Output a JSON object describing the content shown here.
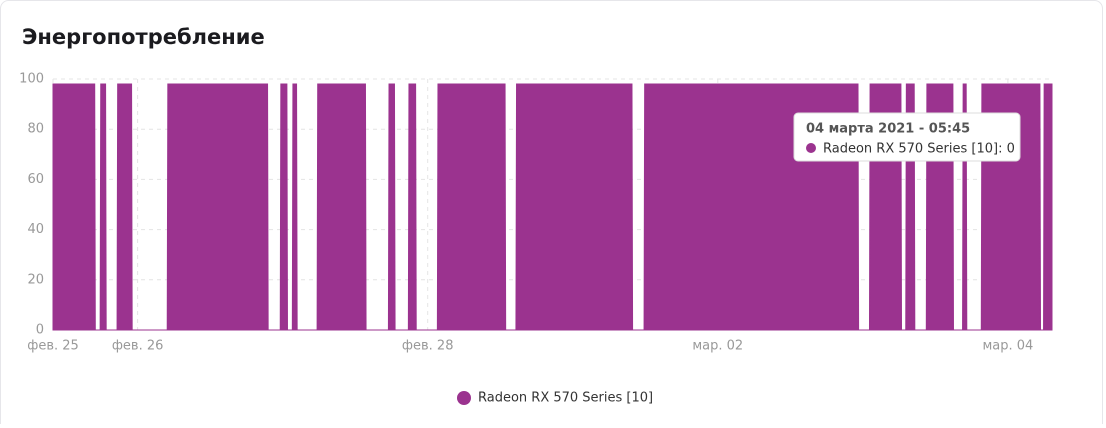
{
  "chart_data": {
    "type": "area",
    "title": "Энергопотребление",
    "series": [
      {
        "name": "Radeon RX 570 Series [10]",
        "color": "#9b338f",
        "x": [
          -14,
          -7.1,
          -7,
          -6.2,
          -6.1,
          -5.3,
          -5.2,
          -3.4,
          -3.3,
          -1,
          -0.9,
          4.9,
          5,
          21.5,
          21.6,
          23.6,
          23.7,
          24.7,
          24.8,
          25.6,
          25.7,
          26.3,
          26.4,
          29.7,
          29.8,
          37.7,
          37.8,
          41.5,
          41.6,
          42.5,
          42.6,
          44.8,
          44.9,
          46,
          46.1,
          49.6,
          49.7,
          60.8,
          60.9,
          62.6,
          62.7,
          81.8,
          81.9,
          83.8,
          83.9,
          119.2,
          119.3,
          121.1,
          121.2,
          126.3,
          126.4,
          127.1,
          127.2,
          128.5,
          128.6,
          130.5,
          130.6,
          134.9,
          135,
          136.5,
          136.6,
          137.1,
          137.2,
          139.6,
          139.7,
          149.3,
          149.4,
          149.9,
          150,
          151.3
        ],
        "values": [
          98,
          98,
          0,
          0,
          98,
          98,
          0,
          0,
          98,
          98,
          0,
          0,
          98,
          98,
          0,
          0,
          98,
          98,
          0,
          0,
          98,
          98,
          0,
          0,
          98,
          98,
          0,
          0,
          98,
          98,
          0,
          0,
          98,
          98,
          0,
          0,
          98,
          98,
          0,
          0,
          98,
          98,
          0,
          0,
          98,
          98,
          0,
          0,
          98,
          98,
          0,
          0,
          98,
          98,
          0,
          0,
          98,
          98,
          0,
          0,
          98,
          98,
          0,
          0,
          98,
          98,
          0,
          0,
          98,
          98
        ]
      }
    ],
    "xlim": [
      -14,
      151.3
    ],
    "xticks": [
      {
        "value": -14,
        "label": "фев. 25"
      },
      {
        "value": 0,
        "label": "фев. 26"
      },
      {
        "value": 48,
        "label": "фев. 28"
      },
      {
        "value": 96,
        "label": "мар. 02"
      },
      {
        "value": 144,
        "label": "мар. 04"
      }
    ],
    "ylim": [
      0,
      100
    ],
    "yticks": [
      0,
      20,
      40,
      60,
      80,
      100
    ],
    "grid": true,
    "tooltip": {
      "title": "04 марта 2021 - 05:45",
      "text": "Radeon RX 570 Series [10]: 0"
    }
  }
}
